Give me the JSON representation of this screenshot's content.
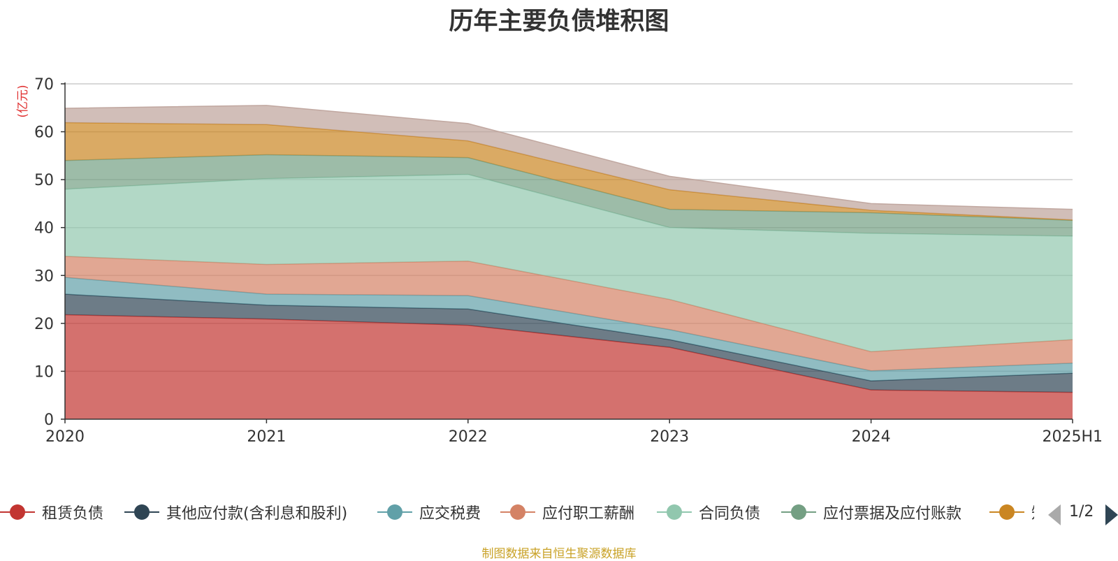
{
  "chart_data": {
    "type": "area",
    "stacked": true,
    "title": "历年主要负债堆积图",
    "ylabel": "(亿元)",
    "ylim": [
      0,
      70
    ],
    "yticks": [
      0,
      10,
      20,
      30,
      40,
      50,
      60,
      70
    ],
    "grid": true,
    "legend_position": "bottom",
    "categories": [
      "2020",
      "2021",
      "2022",
      "2023",
      "2024",
      "2025H1"
    ],
    "series": [
      {
        "name": "租赁负债",
        "color": "#c23531",
        "values": [
          21.8,
          20.9,
          19.6,
          15.0,
          6.1,
          5.6
        ]
      },
      {
        "name": "其他应付款(含利息和股利)",
        "color": "#2f4554",
        "values": [
          4.3,
          2.9,
          3.4,
          1.6,
          1.9,
          4.0
        ]
      },
      {
        "name": "应交税费",
        "color": "#61a0a8",
        "values": [
          3.5,
          2.3,
          2.8,
          2.1,
          2.1,
          2.1
        ]
      },
      {
        "name": "应付职工薪酬",
        "color": "#d48265",
        "values": [
          4.4,
          6.2,
          7.2,
          6.3,
          4.0,
          4.9
        ]
      },
      {
        "name": "合同负债",
        "color": "#91c7ae",
        "values": [
          14.0,
          17.9,
          18.1,
          15.0,
          24.7,
          21.6
        ]
      },
      {
        "name": "应付票据及应付账款",
        "color": "#749f83",
        "values": [
          6.0,
          5.0,
          3.5,
          3.8,
          4.3,
          3.3
        ]
      },
      {
        "name": "",
        "color": "#ca8622",
        "values": [
          7.9,
          6.3,
          3.5,
          4.1,
          0.5,
          0.1
        ]
      },
      {
        "name": "",
        "color": "#bda29a",
        "values": [
          3.0,
          4.0,
          3.6,
          2.8,
          1.4,
          2.2
        ]
      }
    ]
  },
  "legend_items": [
    {
      "label": "租赁负债",
      "color": "#c23531"
    },
    {
      "label": "其他应付款(含利息和股利)",
      "color": "#2f4554"
    },
    {
      "label": "应交税费",
      "color": "#61a0a8"
    },
    {
      "label": "应付职工薪酬",
      "color": "#d48265"
    },
    {
      "label": "合同负债",
      "color": "#91c7ae"
    },
    {
      "label": "应付票据及应付账款",
      "color": "#749f83"
    },
    {
      "label": "知",
      "color": "#ca8622"
    }
  ],
  "legend_pager": "1/2",
  "source_note": "制图数据来自恒生聚源数据库"
}
